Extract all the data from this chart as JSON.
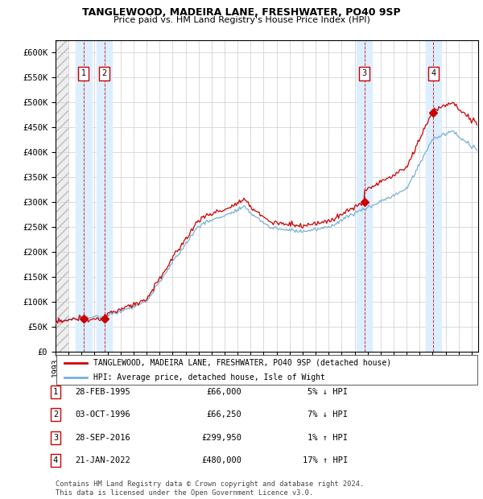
{
  "title1": "TANGLEWOOD, MADEIRA LANE, FRESHWATER, PO40 9SP",
  "title2": "Price paid vs. HM Land Registry's House Price Index (HPI)",
  "ylim": [
    0,
    625000
  ],
  "yticks": [
    0,
    50000,
    100000,
    150000,
    200000,
    250000,
    300000,
    350000,
    400000,
    450000,
    500000,
    550000,
    600000
  ],
  "ytick_labels": [
    "£0",
    "£50K",
    "£100K",
    "£150K",
    "£200K",
    "£250K",
    "£300K",
    "£350K",
    "£400K",
    "£450K",
    "£500K",
    "£550K",
    "£600K"
  ],
  "xlim_start": 1993.0,
  "xlim_end": 2025.5,
  "sale_dates": [
    1995.163,
    1996.751,
    2016.743,
    2022.055
  ],
  "sale_prices": [
    66000,
    66250,
    299950,
    480000
  ],
  "sale_labels": [
    "1",
    "2",
    "3",
    "4"
  ],
  "legend_line1": "TANGLEWOOD, MADEIRA LANE, FRESHWATER, PO40 9SP (detached house)",
  "legend_line2": "HPI: Average price, detached house, Isle of Wight",
  "table_rows": [
    {
      "num": "1",
      "date": "28-FEB-1995",
      "price": "£66,000",
      "pct": "5% ↓ HPI"
    },
    {
      "num": "2",
      "date": "03-OCT-1996",
      "price": "£66,250",
      "pct": "7% ↓ HPI"
    },
    {
      "num": "3",
      "date": "28-SEP-2016",
      "price": "£299,950",
      "pct": "1% ↑ HPI"
    },
    {
      "num": "4",
      "date": "21-JAN-2022",
      "price": "£480,000",
      "pct": "17% ↑ HPI"
    }
  ],
  "footer": "Contains HM Land Registry data © Crown copyright and database right 2024.\nThis data is licensed under the Open Government Licence v3.0.",
  "hpi_color": "#7ab0d4",
  "sale_line_color": "#cc0000",
  "grid_color": "#cccccc",
  "shaded_region_color": "#ddeeff"
}
